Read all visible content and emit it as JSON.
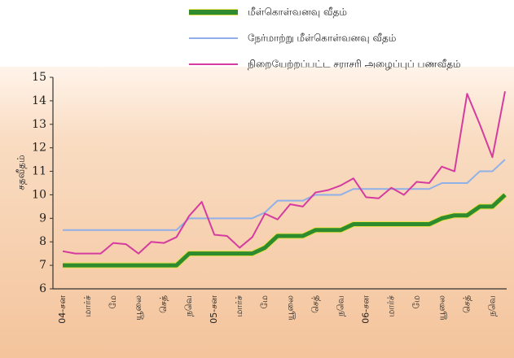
{
  "chart_data": {
    "type": "line",
    "y_label": "சதவீதம்",
    "categories": [
      "04-சன",
      null,
      "மார்ச்",
      null,
      "மே",
      null,
      "யூலை",
      null,
      "செத்",
      null,
      "நவெ",
      null,
      "05-சன",
      null,
      "மார்ச்",
      null,
      "மே",
      null,
      "யூலை",
      null,
      "செத்",
      null,
      "நவெ",
      null,
      "06-சன",
      null,
      "மார்ச்",
      null,
      "மே",
      null,
      "யூலை",
      null,
      "செத்",
      null,
      "நவெ",
      null
    ],
    "series": [
      {
        "name": "மீள்கொள்வனவு வீதம்",
        "color": "#2e8b2e",
        "values": [
          7,
          7,
          7,
          7,
          7,
          7,
          7,
          7,
          7,
          7,
          7.5,
          7.5,
          7.5,
          7.5,
          7.5,
          7.5,
          7.75,
          8.25,
          8.25,
          8.25,
          8.5,
          8.5,
          8.5,
          8.75,
          8.75,
          8.75,
          8.75,
          8.75,
          8.75,
          8.75,
          9,
          9.125,
          9.125,
          9.5,
          9.5,
          10
        ]
      },
      {
        "name": "நேர்மாற்று மீள்கொள்வனவு வீதம்",
        "color": "#8fb0e8",
        "values": [
          8.5,
          8.5,
          8.5,
          8.5,
          8.5,
          8.5,
          8.5,
          8.5,
          8.5,
          8.5,
          9,
          9,
          9,
          9,
          9,
          9,
          9.25,
          9.75,
          9.75,
          9.75,
          10,
          10,
          10,
          10.25,
          10.25,
          10.25,
          10.25,
          10.25,
          10.25,
          10.25,
          10.5,
          10.5,
          10.5,
          11,
          11,
          11.5
        ]
      },
      {
        "name": "நிறையேற்றப்பட்ட சராசரி அழைப்புப் பணவீதம்",
        "color": "#d43ca0",
        "values": [
          7.6,
          7.5,
          7.5,
          7.5,
          7.95,
          7.9,
          7.5,
          8,
          7.95,
          8.2,
          9.1,
          9.7,
          8.3,
          8.25,
          7.75,
          8.2,
          9.2,
          8.95,
          9.6,
          9.5,
          10.1,
          10.2,
          10.4,
          10.7,
          9.9,
          9.85,
          10.3,
          10,
          10.55,
          10.5,
          11.2,
          11,
          14.3,
          13,
          11.6,
          14.4
        ]
      }
    ],
    "ylim": [
      6,
      15
    ],
    "yticks": [
      6,
      7,
      8,
      9,
      10,
      11,
      12,
      13,
      14,
      15
    ]
  }
}
